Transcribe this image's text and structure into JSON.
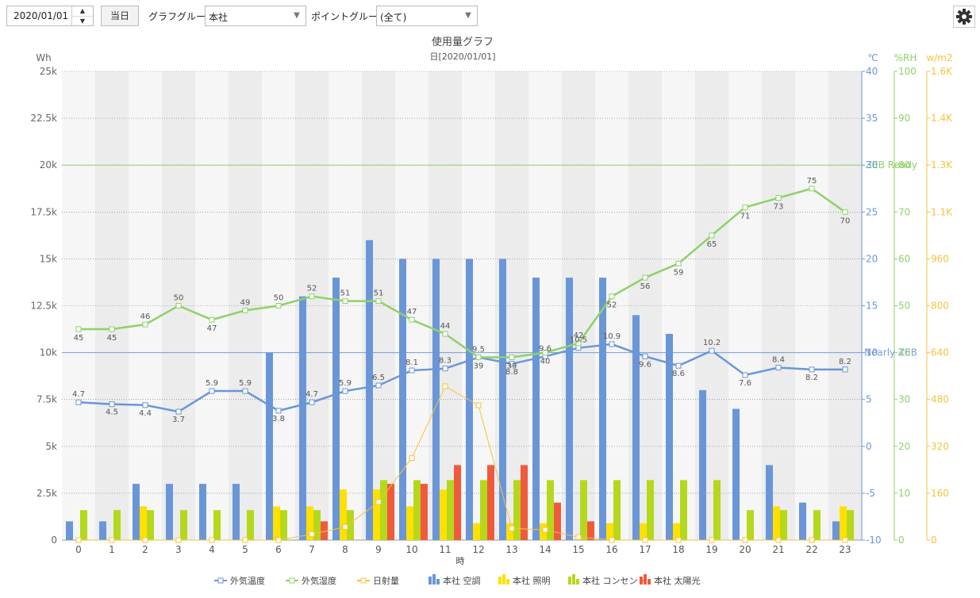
{
  "toolbar": {
    "date_value": "2020/01/01",
    "today_label": "当日",
    "graph_group_label": "グラフグループ:",
    "graph_group_value": "本社",
    "point_group_label": "ポイントグループ:",
    "point_group_value": "(全て)"
  },
  "chart_data": {
    "type": "bar",
    "title": "使用量グラフ",
    "subtitle": "日[2020/01/01]",
    "xlabel": "時",
    "x": [
      0,
      1,
      2,
      3,
      4,
      5,
      6,
      7,
      8,
      9,
      10,
      11,
      12,
      13,
      14,
      15,
      16,
      17,
      18,
      19,
      20,
      21,
      22,
      23
    ],
    "axes": {
      "left": {
        "unit": "Wh",
        "min": 0,
        "max": 25000,
        "ticks": [
          "0",
          "2.5k",
          "5k",
          "7.5k",
          "10k",
          "12.5k",
          "15k",
          "17.5k",
          "20k",
          "22.5k",
          "25k"
        ]
      },
      "temp": {
        "unit": "℃",
        "min": -10,
        "max": 40,
        "ticks": [
          "-10",
          "-5",
          "0",
          "5",
          "10",
          "15",
          "20",
          "25",
          "30",
          "35",
          "40"
        ]
      },
      "humidity": {
        "unit": "%RH",
        "min": 0,
        "max": 100,
        "ticks": [
          "0",
          "10",
          "20",
          "30",
          "40",
          "50",
          "60",
          "70",
          "80",
          "90",
          "100"
        ]
      },
      "solar": {
        "unit": "w/m2",
        "min": 0,
        "max": 1600,
        "ticks": [
          "0",
          "160",
          "320",
          "480",
          "640",
          "800",
          "960",
          "1.1K",
          "1.3K",
          "1.4K",
          "1.6K"
        ]
      }
    },
    "reference_lines": [
      {
        "label": "ZEB Ready",
        "value": 20000,
        "color": "#8fd16a"
      },
      {
        "label": "Nearly ZEB",
        "value": 10000,
        "color": "#7a9fdb"
      }
    ],
    "series": [
      {
        "name": "外気温度",
        "kind": "line",
        "axis": "temp",
        "color": "#6a96d8",
        "values": [
          4.7,
          4.5,
          4.4,
          3.7,
          5.9,
          5.9,
          3.8,
          4.7,
          5.9,
          6.5,
          8.1,
          8.3,
          9.5,
          8.8,
          9.6,
          10.5,
          10.9,
          9.6,
          8.6,
          10.2,
          7.6,
          8.4,
          8.2,
          8.2
        ]
      },
      {
        "name": "外気湿度",
        "kind": "line",
        "axis": "humidity",
        "color": "#8fd16a",
        "values": [
          45,
          45,
          46,
          50,
          47,
          49,
          50,
          52,
          51,
          51,
          47,
          44,
          39,
          39,
          40,
          42,
          52,
          56,
          59,
          65,
          71,
          73,
          75,
          70
        ]
      },
      {
        "name": "日射量",
        "kind": "line",
        "axis": "solar",
        "color": "#f7c33c",
        "values": [
          0,
          0,
          0,
          0,
          0,
          0,
          0,
          20,
          45,
          130,
          280,
          525,
          460,
          40,
          35,
          10,
          0,
          0,
          0,
          0,
          0,
          0,
          0,
          0
        ]
      },
      {
        "name": "本社 空調",
        "kind": "bar",
        "axis": "left",
        "color": "#6a96d8",
        "values": [
          1000,
          1000,
          3000,
          3000,
          3000,
          3000,
          10000,
          13000,
          14000,
          16000,
          15000,
          15000,
          15000,
          15000,
          14000,
          14000,
          14000,
          12000,
          11000,
          8000,
          7000,
          4000,
          2000,
          1000
        ]
      },
      {
        "name": "本社 照明",
        "kind": "bar",
        "axis": "left",
        "color": "#ffe000",
        "values": [
          0,
          0,
          1800,
          0,
          0,
          0,
          1800,
          1800,
          2700,
          2700,
          1800,
          2700,
          900,
          900,
          900,
          0,
          900,
          900,
          900,
          0,
          0,
          1800,
          0,
          1800
        ]
      },
      {
        "name": "本社 コンセント",
        "kind": "bar",
        "axis": "left",
        "color": "#b5d81c",
        "values": [
          1600,
          1600,
          1600,
          1600,
          1600,
          1600,
          1600,
          1600,
          1600,
          3200,
          3200,
          3200,
          3200,
          3200,
          3200,
          3200,
          3200,
          3200,
          3200,
          3200,
          1600,
          1600,
          1600,
          1600
        ]
      },
      {
        "name": "本社 太陽光",
        "kind": "bar",
        "axis": "left",
        "color": "#f05a3c",
        "values": [
          0,
          0,
          0,
          0,
          0,
          0,
          0,
          1000,
          0,
          3000,
          3000,
          4000,
          4000,
          4000,
          2000,
          1000,
          0,
          0,
          0,
          0,
          0,
          0,
          0,
          0
        ]
      }
    ],
    "labels": {
      "temp": [
        "4.7",
        "4.5",
        "4.4",
        "3.7",
        "5.9",
        "5.9",
        "3.8",
        "4.7",
        "5.9",
        "6.5",
        "8.1",
        "8.3",
        "9.5",
        "8.8",
        "9.6",
        "10.5",
        "10.9",
        "9.6",
        "8.6",
        "10.2",
        "7.6",
        "8.4",
        "8.2",
        "8.2"
      ],
      "humidity": [
        "45",
        "45",
        "46",
        "50",
        "47",
        "49",
        "50",
        "52",
        "51",
        "51",
        "47",
        "44",
        "39",
        "39",
        "40",
        "42",
        "52",
        "56",
        "59",
        "65",
        "71",
        "73",
        "75",
        "70"
      ]
    },
    "legend": {
      "position": "bottom",
      "items": [
        "外気温度",
        "外気湿度",
        "日射量",
        "本社 空調",
        "本社 照明",
        "本社 コンセント",
        "本社 太陽光"
      ]
    },
    "grid": true
  }
}
